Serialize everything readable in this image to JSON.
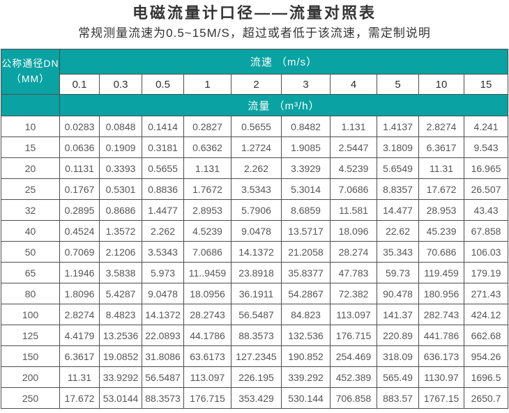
{
  "page": {
    "title": "电磁流量计口径——流量对照表",
    "subtitle": "常规测量流速为0.5~15M/S，超过或者低于该流速，需定制说明"
  },
  "colors": {
    "header_teal": "#0aa2a2",
    "table_border": "#4d4d4d",
    "data_text": "#555555",
    "heading_text": "#333333"
  },
  "chart_data": {
    "type": "table",
    "title": "电磁流量计口径——流量对照表",
    "row_header_line1": "公称通径DN",
    "row_header_line2": "（MM）",
    "velocity_header": "流速 （m/s）",
    "flow_header": "流量 （m³/h）",
    "velocity_columns": [
      "0.1",
      "0.3",
      "0.5",
      "1",
      "2",
      "3",
      "4",
      "5",
      "10",
      "15"
    ],
    "rows": [
      {
        "dn": "10",
        "values": [
          "0.0283",
          "0.0848",
          "0.1414",
          "0.2827",
          "0.5655",
          "0.8482",
          "1.131",
          "1.4137",
          "2.8274",
          "4.241"
        ]
      },
      {
        "dn": "15",
        "values": [
          "0.0636",
          "0.1909",
          "0.3181",
          "0.6362",
          "1.2724",
          "1.9085",
          "2.5447",
          "3.1809",
          "6.3617",
          "9.543"
        ]
      },
      {
        "dn": "20",
        "values": [
          "0.1131",
          "0.3393",
          "0.5655",
          "1.131",
          "2.262",
          "3.3929",
          "4.5239",
          "5.6549",
          "11.31",
          "16.965"
        ]
      },
      {
        "dn": "25",
        "values": [
          "0.1767",
          "0.5301",
          "0.8836",
          "1.7672",
          "3.5343",
          "5.3014",
          "7.0686",
          "8.8357",
          "17.672",
          "26.507"
        ]
      },
      {
        "dn": "32",
        "values": [
          "0.2895",
          "0.8686",
          "1.4477",
          "2.8953",
          "5.7906",
          "8.6859",
          "11.581",
          "14.477",
          "28.953",
          "43.43"
        ]
      },
      {
        "dn": "40",
        "values": [
          "0.4524",
          "1.3572",
          "2.262",
          "4.5239",
          "9.0478",
          "13.5717",
          "18.096",
          "22.62",
          "45.239",
          "67.858"
        ]
      },
      {
        "dn": "50",
        "values": [
          "0.7069",
          "2.1206",
          "3.5343",
          "7.0686",
          "14.1372",
          "21.2058",
          "28.274",
          "35.343",
          "70.686",
          "106.03"
        ]
      },
      {
        "dn": "65",
        "values": [
          "1.1946",
          "3.5838",
          "5.973",
          "11..9459",
          "23.8918",
          "35.8377",
          "47.783",
          "59.73",
          "119.459",
          "179.19"
        ]
      },
      {
        "dn": "80",
        "values": [
          "1.8096",
          "5.4287",
          "9.0478",
          "18.0956",
          "36.1911",
          "54.2867",
          "72.382",
          "90.478",
          "180.956",
          "271.43"
        ]
      },
      {
        "dn": "100",
        "values": [
          "2.8274",
          "8.4823",
          "14.1372",
          "28.2743",
          "56.5487",
          "84.823",
          "113.097",
          "141.37",
          "282.743",
          "424.12"
        ]
      },
      {
        "dn": "125",
        "values": [
          "4.4179",
          "13.2536",
          "22.0893",
          "44.1786",
          "88.3573",
          "132.536",
          "176.715",
          "220.89",
          "441.786",
          "662.68"
        ]
      },
      {
        "dn": "150",
        "values": [
          "6.3617",
          "19.0852",
          "31.8086",
          "63.6173",
          "127.2345",
          "190.852",
          "254.469",
          "318.09",
          "636.173",
          "954.26"
        ]
      },
      {
        "dn": "200",
        "values": [
          "11.31",
          "33.9292",
          "56.5487",
          "113.097",
          "226.195",
          "339.292",
          "452.389",
          "565.49",
          "1130.97",
          "1696.5"
        ]
      },
      {
        "dn": "250",
        "values": [
          "17.672",
          "53.0144",
          "88.3573",
          "176.715",
          "353.429",
          "530.144",
          "706.858",
          "883.57",
          "1767.15",
          "2650.7"
        ]
      }
    ]
  }
}
